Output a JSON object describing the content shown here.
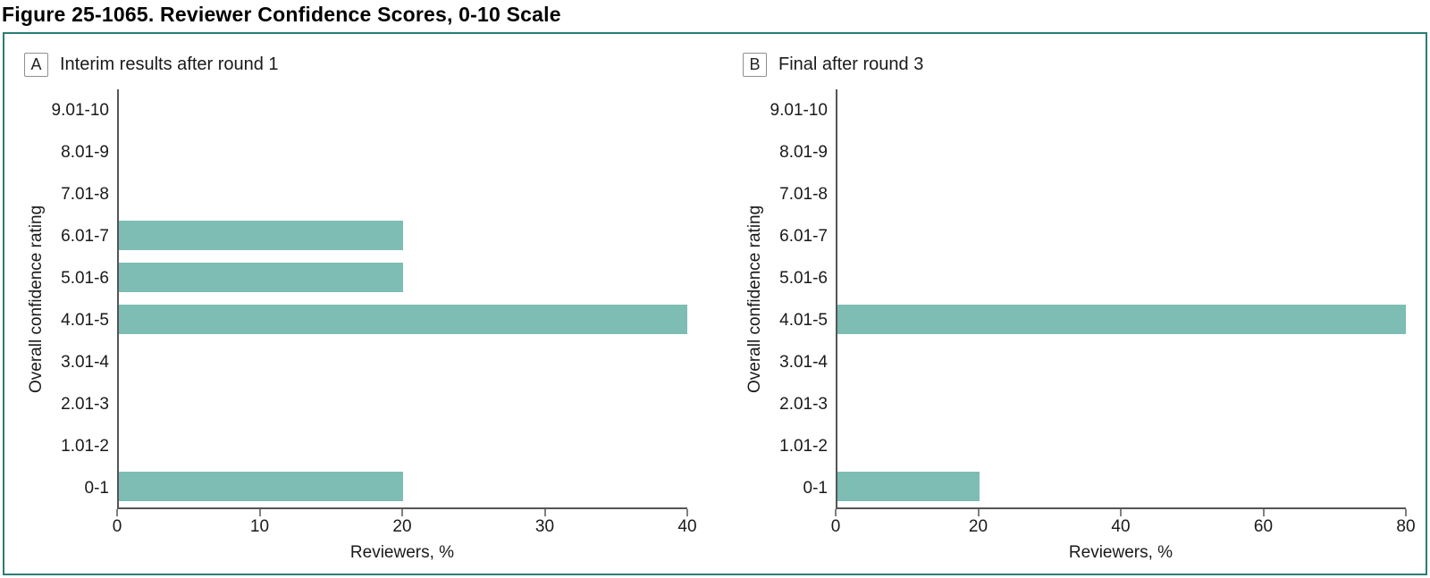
{
  "figure": {
    "title": "Figure 25-1065. Reviewer Confidence Scores, 0-10 Scale"
  },
  "colors": {
    "bar": "#7dbdb3",
    "frame_border": "#2b7d74",
    "axis": "#555555"
  },
  "chart_data": [
    {
      "type": "bar",
      "orientation": "horizontal",
      "panel_label": "A",
      "title": "Interim results after round 1",
      "categories": [
        "9.01-10",
        "8.01-9",
        "7.01-8",
        "6.01-7",
        "5.01-6",
        "4.01-5",
        "3.01-4",
        "2.01-3",
        "1.01-2",
        "0-1"
      ],
      "values": [
        0,
        0,
        0,
        20,
        20,
        40,
        0,
        0,
        0,
        20
      ],
      "xlabel": "Reviewers, %",
      "ylabel": "Overall confidence rating",
      "xlim": [
        0,
        40
      ],
      "xticks": [
        0,
        10,
        20,
        30,
        40
      ],
      "grid": false,
      "legend": false
    },
    {
      "type": "bar",
      "orientation": "horizontal",
      "panel_label": "B",
      "title": "Final after round 3",
      "categories": [
        "9.01-10",
        "8.01-9",
        "7.01-8",
        "6.01-7",
        "5.01-6",
        "4.01-5",
        "3.01-4",
        "2.01-3",
        "1.01-2",
        "0-1"
      ],
      "values": [
        0,
        0,
        0,
        0,
        0,
        80,
        0,
        0,
        0,
        20
      ],
      "xlabel": "Reviewers, %",
      "ylabel": "Overall confidence rating",
      "xlim": [
        0,
        80
      ],
      "xticks": [
        0,
        20,
        40,
        60,
        80
      ],
      "grid": false,
      "legend": false
    }
  ]
}
